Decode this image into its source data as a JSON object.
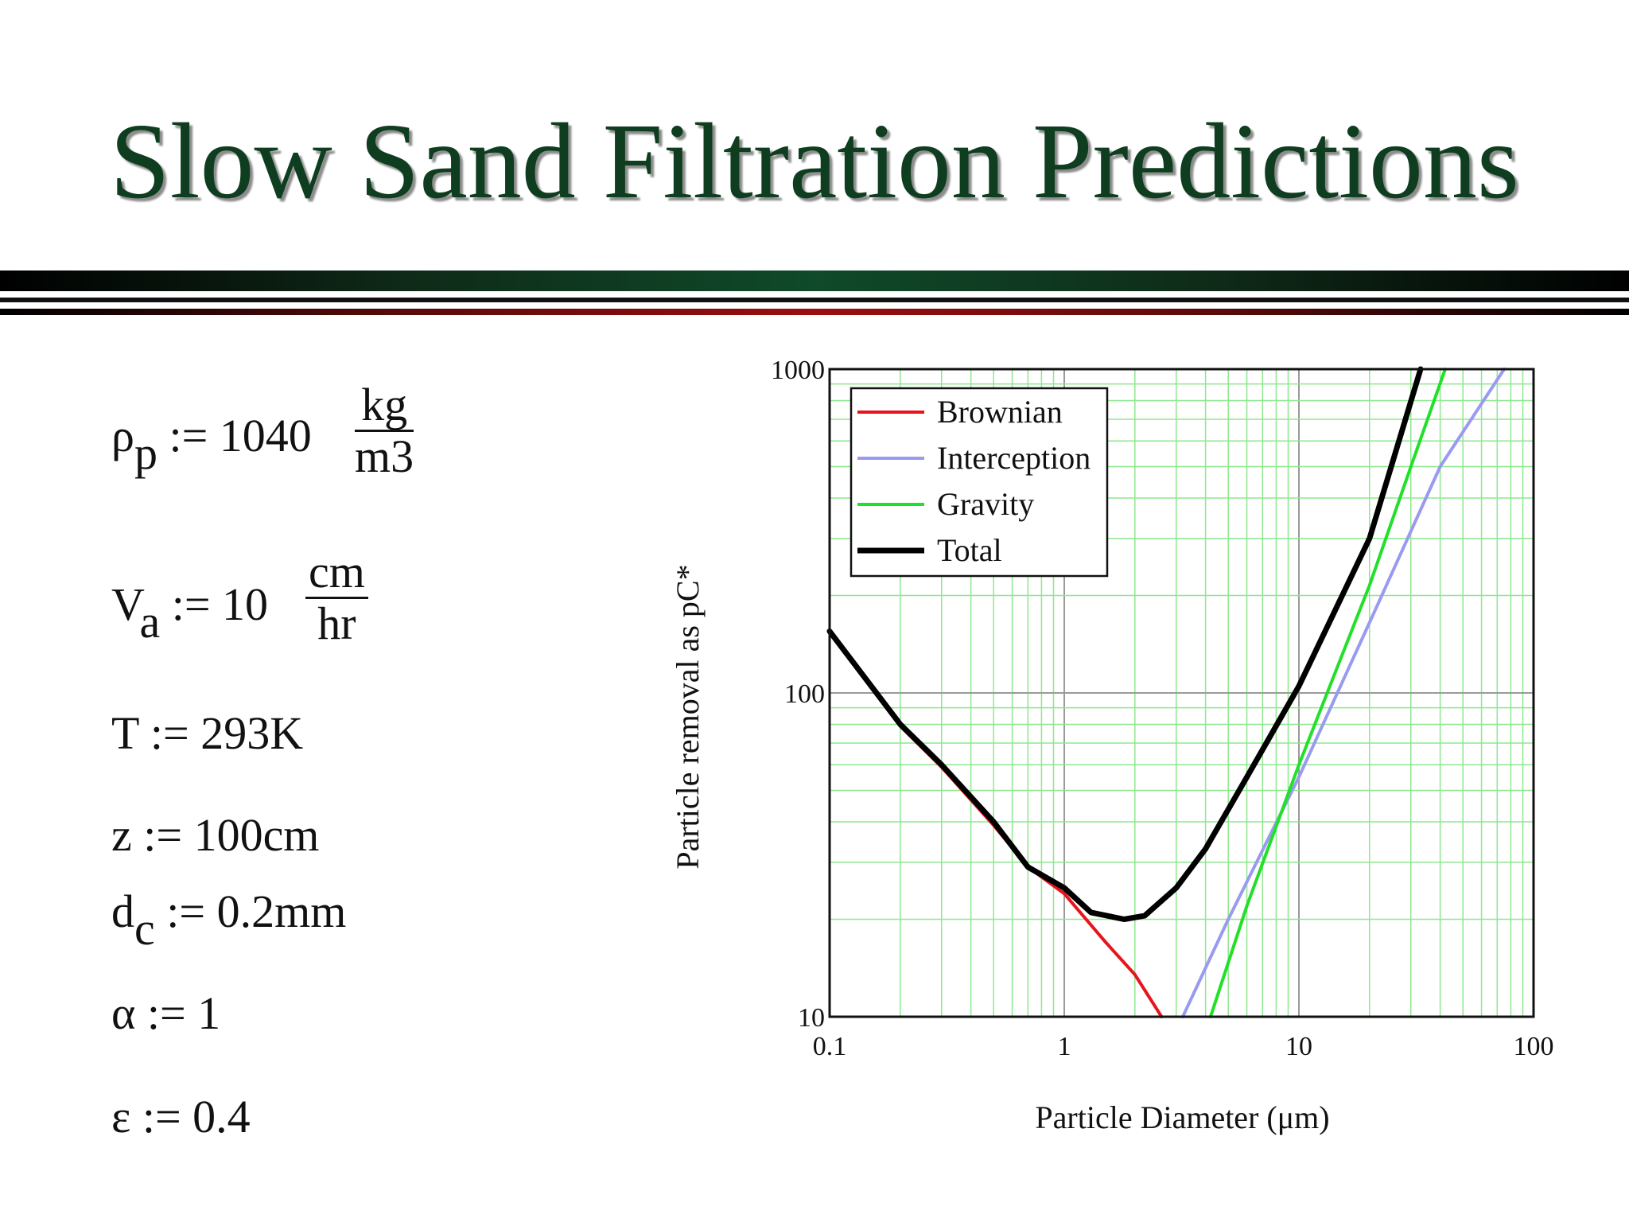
{
  "slide": {
    "title": "Slow Sand Filtration Predictions"
  },
  "equations": {
    "rho_p": {
      "symbol": "ρ",
      "sub": "p",
      "assign": ":=",
      "value": "1040",
      "unit_num": "kg",
      "unit_den": "m",
      "unit_den_exp": "3"
    },
    "V_a": {
      "symbol": "V",
      "sub": "a",
      "assign": ":=",
      "value": "10",
      "unit_num": "cm",
      "unit_den": "hr"
    },
    "T": {
      "text": "T := 293K"
    },
    "z": {
      "text": "z := 100cm"
    },
    "d_c": {
      "symbol": "d",
      "sub": "c",
      "rest": " := 0.2mm"
    },
    "alpha": {
      "text": "α := 1"
    },
    "epsilon": {
      "text": "ε := 0.4"
    }
  },
  "colors": {
    "title": "#0f3d1f",
    "brownian": "#e8141c",
    "interception": "#9a9af0",
    "gravity": "#22e02a",
    "total": "#000000",
    "grid_major": "#9a9a9a",
    "grid_minor": "#8ee88e"
  },
  "chart_data": {
    "type": "line",
    "xlabel": "Particle Diameter (μm)",
    "ylabel": "Particle removal as pC*",
    "xscale": "log",
    "yscale": "log",
    "xlim": [
      0.1,
      100
    ],
    "ylim": [
      10,
      1000
    ],
    "x_ticks": [
      "0.1",
      "1",
      "10",
      "100"
    ],
    "y_ticks": [
      "10",
      "100",
      "1000"
    ],
    "grid": true,
    "legend_position": "top-left",
    "series": [
      {
        "name": "Brownian",
        "color": "#e8141c",
        "points": [
          [
            0.1,
            155
          ],
          [
            0.2,
            79
          ],
          [
            0.3,
            59
          ],
          [
            0.5,
            39
          ],
          [
            0.7,
            29
          ],
          [
            1.0,
            24
          ],
          [
            1.5,
            17
          ],
          [
            2.0,
            13.5
          ],
          [
            2.6,
            10
          ]
        ]
      },
      {
        "name": "Interception",
        "color": "#9a9af0",
        "points": [
          [
            3.2,
            10
          ],
          [
            5,
            20
          ],
          [
            10,
            55
          ],
          [
            20,
            165
          ],
          [
            40,
            500
          ],
          [
            75,
            1000
          ]
        ]
      },
      {
        "name": "Gravity",
        "color": "#22e02a",
        "points": [
          [
            4.2,
            10
          ],
          [
            6,
            22
          ],
          [
            10,
            60
          ],
          [
            20,
            215
          ],
          [
            30,
            500
          ],
          [
            42,
            1000
          ]
        ]
      },
      {
        "name": "Total",
        "color": "#000000",
        "points": [
          [
            0.1,
            155
          ],
          [
            0.2,
            80
          ],
          [
            0.3,
            60
          ],
          [
            0.5,
            40
          ],
          [
            0.7,
            29
          ],
          [
            1.0,
            25
          ],
          [
            1.3,
            21
          ],
          [
            1.8,
            20
          ],
          [
            2.2,
            20.5
          ],
          [
            3,
            25
          ],
          [
            4,
            33
          ],
          [
            6,
            55
          ],
          [
            10,
            105
          ],
          [
            20,
            300
          ],
          [
            33,
            1000
          ]
        ]
      }
    ]
  }
}
